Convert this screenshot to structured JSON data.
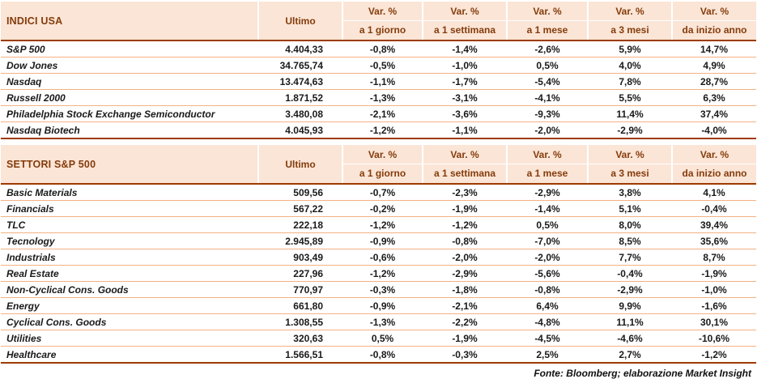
{
  "columns": {
    "ultimo": "Ultimo",
    "var": [
      {
        "line1": "Var. %",
        "line2": "a 1 giorno"
      },
      {
        "line1": "Var. %",
        "line2": "a 1 settimana"
      },
      {
        "line1": "Var. %",
        "line2": "a 1 mese"
      },
      {
        "line1": "Var. %",
        "line2": "a 3 mesi"
      },
      {
        "line1": "Var. %",
        "line2": "da inizio anno"
      }
    ]
  },
  "tables": [
    {
      "title": "INDICI USA",
      "rows": [
        {
          "name": "S&P 500",
          "ultimo": "4.404,33",
          "values": [
            "-0,8%",
            "-1,4%",
            "-2,6%",
            "5,9%",
            "14,7%"
          ]
        },
        {
          "name": "Dow Jones",
          "ultimo": "34.765,74",
          "values": [
            "-0,5%",
            "-1,0%",
            "0,5%",
            "4,0%",
            "4,9%"
          ]
        },
        {
          "name": "Nasdaq",
          "ultimo": "13.474,63",
          "values": [
            "-1,1%",
            "-1,7%",
            "-5,4%",
            "7,8%",
            "28,7%"
          ]
        },
        {
          "name": "Russell 2000",
          "ultimo": "1.871,52",
          "values": [
            "-1,3%",
            "-3,1%",
            "-4,1%",
            "5,5%",
            "6,3%"
          ]
        },
        {
          "name": "Philadelphia Stock Exchange Semiconductor",
          "ultimo": "3.480,08",
          "values": [
            "-2,1%",
            "-3,6%",
            "-9,3%",
            "11,4%",
            "37,4%"
          ]
        },
        {
          "name": "Nasdaq Biotech",
          "ultimo": "4.045,93",
          "values": [
            "-1,2%",
            "-1,1%",
            "-2,0%",
            "-2,9%",
            "-4,0%"
          ]
        }
      ]
    },
    {
      "title": "SETTORI S&P 500",
      "rows": [
        {
          "name": "Basic Materials",
          "ultimo": "509,56",
          "values": [
            "-0,7%",
            "-2,3%",
            "-2,9%",
            "3,8%",
            "4,1%"
          ]
        },
        {
          "name": "Financials",
          "ultimo": "567,22",
          "values": [
            "-0,2%",
            "-1,9%",
            "-1,4%",
            "5,1%",
            "-0,4%"
          ]
        },
        {
          "name": "TLC",
          "ultimo": "222,18",
          "values": [
            "-1,2%",
            "-1,2%",
            "0,5%",
            "8,0%",
            "39,4%"
          ]
        },
        {
          "name": "Tecnology",
          "ultimo": "2.945,89",
          "values": [
            "-0,9%",
            "-0,8%",
            "-7,0%",
            "8,5%",
            "35,6%"
          ]
        },
        {
          "name": "Industrials",
          "ultimo": "903,49",
          "values": [
            "-0,6%",
            "-2,0%",
            "-2,0%",
            "7,7%",
            "8,7%"
          ]
        },
        {
          "name": "Real Estate",
          "ultimo": "227,96",
          "values": [
            "-1,2%",
            "-2,9%",
            "-5,6%",
            "-0,4%",
            "-1,9%"
          ]
        },
        {
          "name": "Non-Cyclical Cons. Goods",
          "ultimo": "770,97",
          "values": [
            "-0,3%",
            "-1,8%",
            "-0,8%",
            "-2,9%",
            "-1,0%"
          ]
        },
        {
          "name": "Energy",
          "ultimo": "661,80",
          "values": [
            "-0,9%",
            "-2,1%",
            "6,4%",
            "9,9%",
            "-1,6%"
          ]
        },
        {
          "name": "Cyclical Cons. Goods",
          "ultimo": "1.308,55",
          "values": [
            "-1,3%",
            "-2,2%",
            "-4,8%",
            "11,1%",
            "30,1%"
          ]
        },
        {
          "name": "Utilities",
          "ultimo": "320,63",
          "values": [
            "0,5%",
            "-1,9%",
            "-4,5%",
            "-4,6%",
            "-10,6%"
          ]
        },
        {
          "name": "Healthcare",
          "ultimo": "1.566,51",
          "values": [
            "-0,8%",
            "-0,3%",
            "2,5%",
            "2,7%",
            "-1,2%"
          ]
        }
      ]
    }
  ],
  "footer": "Fonte: Bloomberg; elaborazione Market Insight",
  "colors": {
    "header_bg": "#fbe5d6",
    "header_text": "#843c0c",
    "thick_line": "#9e3b00",
    "thin_line": "#f4b183",
    "data_text": "#1a1a1a"
  }
}
